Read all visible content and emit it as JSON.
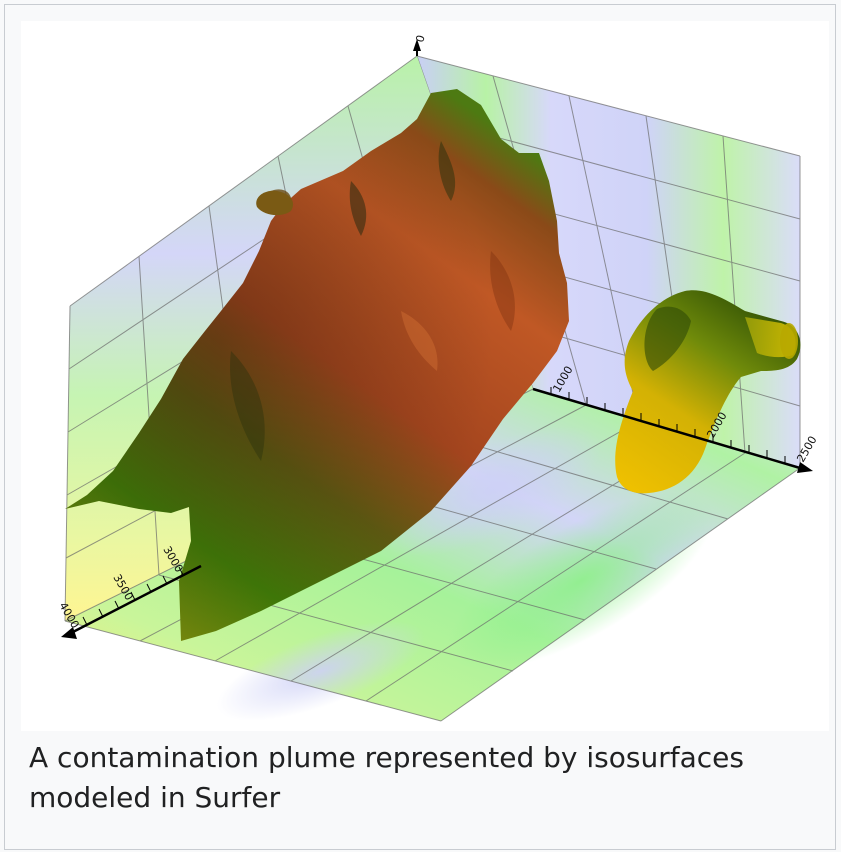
{
  "caption": "A contamination plume represented by isosurfaces modeled in Surfer",
  "axes": {
    "vertical_top_label": "0",
    "right_axis_ticks": [
      "1000",
      "2000",
      "2500"
    ],
    "left_axis_ticks": [
      "3000",
      "3500",
      "4000"
    ]
  },
  "colors": {
    "plume_orange": "#b8501f",
    "plume_green": "#3f7a08",
    "plume_yellow": "#e0b000",
    "plane_green": "#a7f39a",
    "plane_lavender": "#d6d8f8",
    "plane_yellow": "#fff59a",
    "grid": "#6a6a6a"
  }
}
